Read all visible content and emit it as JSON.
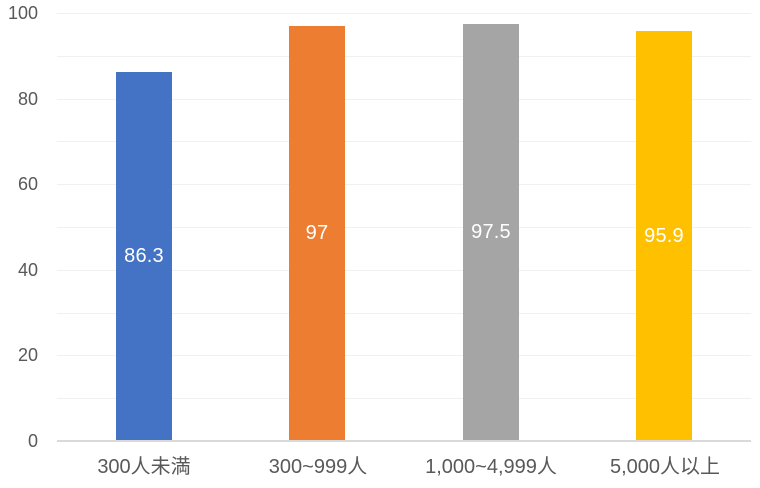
{
  "chart_data": {
    "type": "bar",
    "title": "",
    "xlabel": "",
    "ylabel": "",
    "categories": [
      "300人未満",
      "300~999人",
      "1,000~4,999人",
      "5,000人以上"
    ],
    "values": [
      86.3,
      97,
      97.5,
      95.9
    ],
    "value_labels": [
      "86.3",
      "97",
      "97.5",
      "95.9"
    ],
    "bar_colors": [
      "#4472C4",
      "#ED7D31",
      "#A5A5A5",
      "#FFC000"
    ],
    "ylim": [
      0,
      100
    ],
    "y_ticks": [
      0,
      20,
      40,
      60,
      80,
      100
    ],
    "y_tick_labels": [
      "0",
      "20",
      "40",
      "60",
      "80",
      "100"
    ],
    "minor_grid_step": 10,
    "grid": true,
    "legend": "none",
    "data_label_position": "inside-center",
    "colors": {
      "data_label_text": "#FFFFFF",
      "axis_text": "#595959",
      "gridline": "#F0F0F0",
      "axis_line": "#D9D9D9",
      "background": "#FFFFFF"
    }
  }
}
